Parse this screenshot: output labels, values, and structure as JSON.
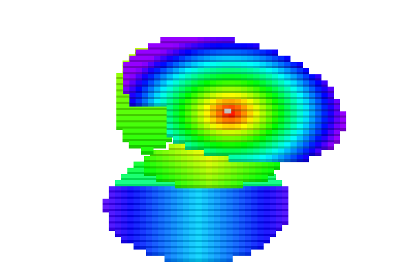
{
  "scene": {
    "description_type": "3d-voxel-render",
    "background_color": "#ffffff",
    "colormap": [
      "#ff0000",
      "#ff8000",
      "#ffff00",
      "#00ff00",
      "#00ffff",
      "#0000ff",
      "#8000ff"
    ],
    "highlight_color": "#c0c0c0"
  }
}
